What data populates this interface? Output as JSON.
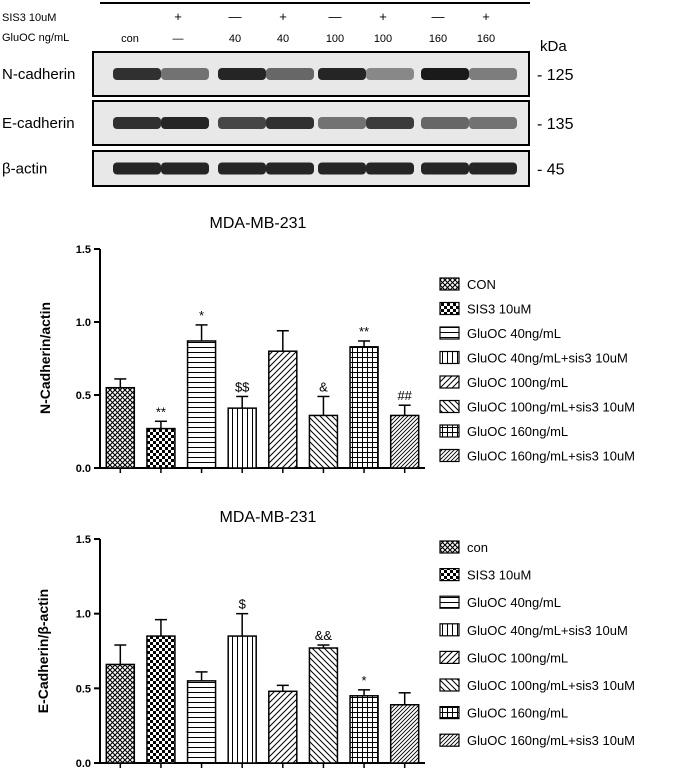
{
  "blot": {
    "treat_rows": [
      {
        "label": "SIS3 10uM",
        "values": [
          "",
          "+",
          "—",
          "+",
          "—",
          "+",
          "—",
          "+"
        ]
      },
      {
        "label": "GluOC ng/mL",
        "values": [
          "con",
          "—",
          "40",
          "40",
          "100",
          "100",
          "160",
          "160"
        ]
      }
    ],
    "kda_label": "kDa",
    "bands": [
      {
        "name": "N-cadherin",
        "kda": "- 125",
        "intensity": [
          0.85,
          0.55,
          0.9,
          0.6,
          0.9,
          0.45,
          0.95,
          0.5
        ]
      },
      {
        "name": "E-cadherin",
        "kda": "- 135",
        "intensity": [
          0.85,
          0.9,
          0.75,
          0.85,
          0.55,
          0.8,
          0.6,
          0.55
        ]
      },
      {
        "name": "β-actin",
        "kda": "- 45",
        "intensity": [
          0.9,
          0.9,
          0.9,
          0.9,
          0.9,
          0.9,
          0.9,
          0.9
        ]
      }
    ]
  },
  "patterns": [
    "crosshatch",
    "checker",
    "hlines",
    "vlines",
    "diag-up",
    "diag-down",
    "grid",
    "diag-up-fine"
  ],
  "chart_data": [
    {
      "type": "bar",
      "title": "MDA-MB-231",
      "ylabel": "N-Cadherin/actin",
      "ylim": [
        0,
        1.5
      ],
      "yticks": [
        "0.0",
        "0.5",
        "1.0",
        "1.5"
      ],
      "categories": [
        "CON",
        "SIS3 10uM",
        "GluOC 40ng/mL",
        "GluOC 40ng/mL+sis3 10uM",
        "GluOC 100ng/mL",
        "GluOC 100ng/mL+sis3 10uM",
        "GluOC 160ng/mL",
        "GluOC 160ng/mL+sis3 10uM"
      ],
      "values": [
        0.55,
        0.27,
        0.87,
        0.41,
        0.8,
        0.36,
        0.83,
        0.36
      ],
      "errors": [
        0.06,
        0.05,
        0.11,
        0.08,
        0.14,
        0.13,
        0.04,
        0.07
      ],
      "annotations": [
        "",
        "**",
        "*",
        "$$",
        "",
        "&",
        "**",
        "##"
      ],
      "legend": [
        "CON",
        "SIS3 10uM",
        "GluOC 40ng/mL",
        "GluOC 40ng/mL+sis3 10uM",
        "GluOC 100ng/mL",
        "GluOC 100ng/mL+sis3 10uM",
        "GluOC 160ng/mL",
        "GluOC 160ng/mL+sis3 10uM"
      ],
      "legend_position": "right"
    },
    {
      "type": "bar",
      "title": "MDA-MB-231",
      "ylabel": "E-Cadherin/β-actin",
      "ylim": [
        0,
        1.5
      ],
      "yticks": [
        "0.0",
        "0.5",
        "1.0",
        "1.5"
      ],
      "categories": [
        "con",
        "SIS3 10uM",
        "GluOC 40ng/mL",
        "GluOC 40ng/mL+sis3 10uM",
        "GluOC 100ng/mL",
        "GluOC 100ng/mL+sis3 10uM",
        "GluOC 160ng/mL",
        "GluOC 160ng/mL+sis3 10uM"
      ],
      "values": [
        0.66,
        0.85,
        0.55,
        0.85,
        0.48,
        0.77,
        0.45,
        0.39
      ],
      "errors": [
        0.13,
        0.11,
        0.06,
        0.15,
        0.04,
        0.02,
        0.04,
        0.08
      ],
      "annotations": [
        "",
        "",
        "",
        "$",
        "",
        "&&",
        "*",
        ""
      ],
      "legend": [
        "con",
        "SIS3 10uM",
        "GluOC 40ng/mL",
        "GluOC 40ng/mL+sis3 10uM",
        "GluOC 100ng/mL",
        "GluOC 100ng/mL+sis3 10uM",
        "GluOC 160ng/mL",
        "GluOC 160ng/mL+sis3 10uM"
      ],
      "legend_position": "right"
    }
  ]
}
